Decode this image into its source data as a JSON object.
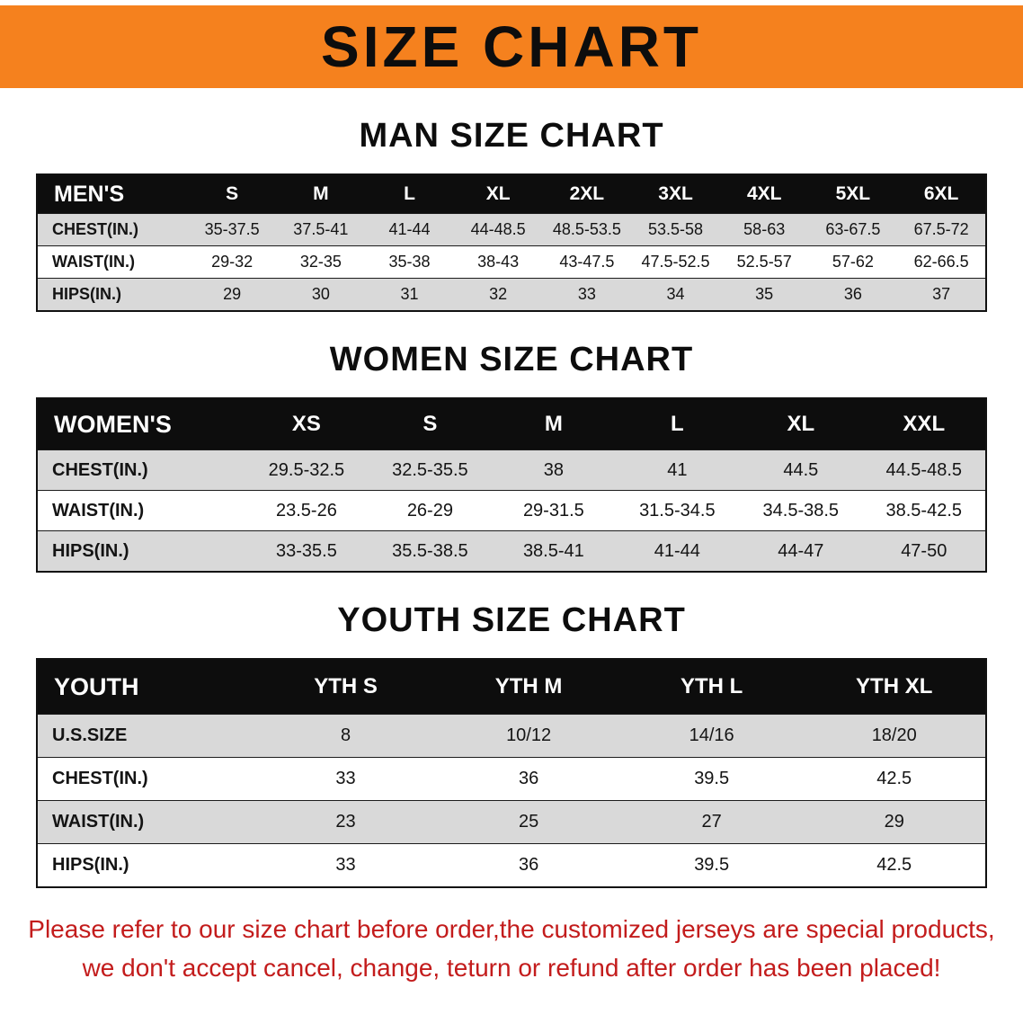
{
  "banner": {
    "title": "SIZE CHART"
  },
  "colors": {
    "banner_bg": "#f5811e",
    "table_header_bg": "#0d0d0d",
    "row_stripe": "#d9d9d9",
    "notice_red": "#c31c1c"
  },
  "chart_data": [
    {
      "type": "table",
      "title": "MAN SIZE CHART",
      "columns": [
        "MEN'S",
        "S",
        "M",
        "L",
        "XL",
        "2XL",
        "3XL",
        "4XL",
        "5XL",
        "6XL"
      ],
      "rows": [
        [
          "CHEST(IN.)",
          "35-37.5",
          "37.5-41",
          "41-44",
          "44-48.5",
          "48.5-53.5",
          "53.5-58",
          "58-63",
          "63-67.5",
          "67.5-72"
        ],
        [
          "WAIST(IN.)",
          "29-32",
          "32-35",
          "35-38",
          "38-43",
          "43-47.5",
          "47.5-52.5",
          "52.5-57",
          "57-62",
          "62-66.5"
        ],
        [
          "HIPS(IN.)",
          "29",
          "30",
          "31",
          "32",
          "33",
          "34",
          "35",
          "36",
          "37"
        ]
      ]
    },
    {
      "type": "table",
      "title": "WOMEN SIZE CHART",
      "columns": [
        "WOMEN'S",
        "XS",
        "S",
        "M",
        "L",
        "XL",
        "XXL"
      ],
      "rows": [
        [
          "CHEST(IN.)",
          "29.5-32.5",
          "32.5-35.5",
          "38",
          "41",
          "44.5",
          "44.5-48.5"
        ],
        [
          "WAIST(IN.)",
          "23.5-26",
          "26-29",
          "29-31.5",
          "31.5-34.5",
          "34.5-38.5",
          "38.5-42.5"
        ],
        [
          "HIPS(IN.)",
          "33-35.5",
          "35.5-38.5",
          "38.5-41",
          "41-44",
          "44-47",
          "47-50"
        ]
      ]
    },
    {
      "type": "table",
      "title": "YOUTH SIZE CHART",
      "columns": [
        "YOUTH",
        "YTH S",
        "YTH M",
        "YTH L",
        "YTH XL"
      ],
      "rows": [
        [
          "U.S.SIZE",
          "8",
          "10/12",
          "14/16",
          "18/20"
        ],
        [
          "CHEST(IN.)",
          "33",
          "36",
          "39.5",
          "42.5"
        ],
        [
          "WAIST(IN.)",
          "23",
          "25",
          "27",
          "29"
        ],
        [
          "HIPS(IN.)",
          "33",
          "36",
          "39.5",
          "42.5"
        ]
      ]
    }
  ],
  "footer": {
    "line1": "Please refer to our size chart before order,the customized jerseys are special products,",
    "line2": "we don't accept cancel, change, teturn or refund after order has been placed!"
  }
}
